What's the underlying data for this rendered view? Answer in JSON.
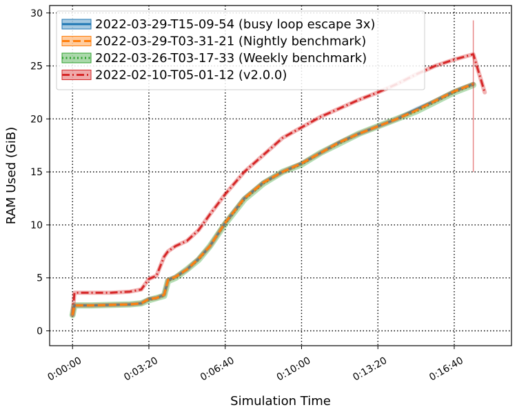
{
  "chart_data": {
    "type": "line",
    "xlabel": "Simulation Time",
    "ylabel": "RAM Used (GiB)",
    "xlim": [
      -60,
      1150
    ],
    "ylim": [
      -1.4,
      30.7
    ],
    "x_ticks": [
      {
        "value": 0,
        "label": "0:00:00"
      },
      {
        "value": 200,
        "label": "0:03:20"
      },
      {
        "value": 400,
        "label": "0:06:40"
      },
      {
        "value": 600,
        "label": "0:10:00"
      },
      {
        "value": 800,
        "label": "0:13:20"
      },
      {
        "value": 1000,
        "label": "0:16:40"
      }
    ],
    "y_ticks": [
      {
        "value": 0,
        "label": "0"
      },
      {
        "value": 5,
        "label": "5"
      },
      {
        "value": 10,
        "label": "10"
      },
      {
        "value": 15,
        "label": "15"
      },
      {
        "value": 20,
        "label": "20"
      },
      {
        "value": 25,
        "label": "25"
      },
      {
        "value": 30,
        "label": "30"
      }
    ],
    "grid": true,
    "legend_position": "top-left",
    "series": [
      {
        "name": "2022-03-29-T15-09-54 (busy loop escape 3x)",
        "color": "#1f77b4",
        "line_style": "solid",
        "x": [
          0,
          5,
          50,
          100,
          150,
          180,
          200,
          220,
          240,
          250,
          270,
          300,
          330,
          360,
          400,
          450,
          500,
          550,
          600,
          650,
          700,
          750,
          800,
          850,
          900,
          950,
          1000,
          1050
        ],
        "y": [
          1.5,
          2.4,
          2.4,
          2.45,
          2.5,
          2.6,
          3.0,
          3.1,
          3.4,
          4.8,
          5.1,
          5.8,
          6.8,
          8.0,
          10.2,
          12.5,
          14.0,
          15.0,
          15.8,
          16.8,
          17.8,
          18.6,
          19.3,
          20.0,
          20.9,
          21.7,
          22.6,
          23.3
        ]
      },
      {
        "name": "2022-03-29-T03-31-21 (Nightly benchmark)",
        "color": "#ff7f0e",
        "line_style": "dashed",
        "x": [
          0,
          5,
          50,
          100,
          150,
          180,
          200,
          220,
          240,
          250,
          270,
          300,
          330,
          360,
          400,
          450,
          500,
          550,
          600,
          650,
          700,
          750,
          800,
          850,
          900,
          950,
          1000,
          1050
        ],
        "y": [
          1.5,
          2.4,
          2.4,
          2.45,
          2.5,
          2.6,
          3.0,
          3.1,
          3.4,
          4.8,
          5.1,
          5.8,
          6.8,
          8.0,
          10.2,
          12.5,
          14.0,
          15.0,
          15.8,
          16.8,
          17.8,
          18.6,
          19.3,
          20.0,
          20.8,
          21.7,
          22.6,
          23.3
        ]
      },
      {
        "name": "2022-03-26-T03-17-33 (Weekly benchmark)",
        "color": "#2ca02c",
        "line_style": "dotted",
        "x": [
          0,
          5,
          50,
          100,
          150,
          180,
          200,
          220,
          240,
          250,
          270,
          300,
          330,
          360,
          400,
          450,
          500,
          550,
          600,
          650,
          700,
          750,
          800,
          850,
          900,
          950,
          1000,
          1050
        ],
        "y": [
          1.5,
          2.4,
          2.4,
          2.45,
          2.5,
          2.6,
          2.9,
          3.1,
          3.3,
          4.7,
          5.0,
          5.8,
          6.7,
          8.0,
          10.1,
          12.4,
          13.9,
          15.0,
          15.7,
          16.8,
          17.7,
          18.6,
          19.3,
          20.0,
          20.7,
          21.6,
          22.5,
          23.2
        ]
      },
      {
        "name": "2022-02-10-T05-01-12 (v2.0.0)",
        "color": "#d62728",
        "line_style": "dashdot",
        "x": [
          0,
          5,
          30,
          100,
          150,
          180,
          200,
          220,
          240,
          250,
          270,
          300,
          330,
          360,
          400,
          450,
          500,
          550,
          600,
          650,
          700,
          750,
          800,
          850,
          900,
          950,
          1000,
          1050,
          1080
        ],
        "y": [
          1.5,
          3.6,
          3.6,
          3.6,
          3.7,
          3.9,
          4.9,
          5.2,
          7.0,
          7.5,
          8.0,
          8.5,
          9.5,
          11.0,
          12.9,
          15.0,
          16.6,
          18.2,
          19.2,
          20.2,
          21.0,
          21.8,
          22.5,
          23.3,
          24.2,
          25.0,
          25.6,
          26.1,
          22.5
        ]
      }
    ]
  }
}
